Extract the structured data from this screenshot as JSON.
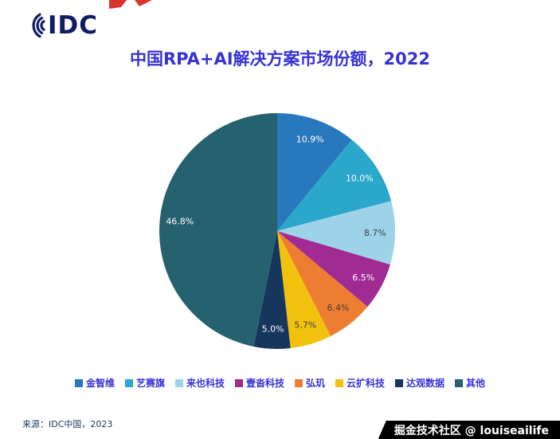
{
  "header": {
    "logo_text": "IDC",
    "title": "中国RPA+AI解决方案市场份额，2022"
  },
  "chart_data": {
    "type": "pie",
    "title": "中国RPA+AI解决方案市场份额，2022",
    "direction": "clockwise",
    "start_angle": "top",
    "legend_position": "bottom",
    "slices": [
      {
        "label": "金智维",
        "value": 10.9,
        "display": "10.9%",
        "color": "#2878BD",
        "label_color": "#ffffff"
      },
      {
        "label": "艺赛旗",
        "value": 10.0,
        "display": "10.0%",
        "color": "#2BA7CB",
        "label_color": "#ffffff"
      },
      {
        "label": "来也科技",
        "value": 8.7,
        "display": "8.7%",
        "color": "#9DD3E8",
        "label_color": "#3f3f3f"
      },
      {
        "label": "壹沓科技",
        "value": 6.5,
        "display": "6.5%",
        "color": "#A02B93",
        "label_color": "#ffffff"
      },
      {
        "label": "弘玑",
        "value": 6.4,
        "display": "6.4%",
        "color": "#ED7D31",
        "label_color": "#3f3f3f"
      },
      {
        "label": "云扩科技",
        "value": 5.7,
        "display": "5.7%",
        "color": "#F2C10E",
        "label_color": "#3f3f3f"
      },
      {
        "label": "达观数据",
        "value": 5.0,
        "display": "5.0%",
        "color": "#16365C",
        "label_color": "#ffffff"
      },
      {
        "label": "其他",
        "value": 46.8,
        "display": "46.8%",
        "color": "#26616F",
        "label_color": "#ffffff"
      }
    ]
  },
  "footer": {
    "source": "来源：IDC中国，2023",
    "watermark": "掘金技术社区 @ louiseailife"
  }
}
